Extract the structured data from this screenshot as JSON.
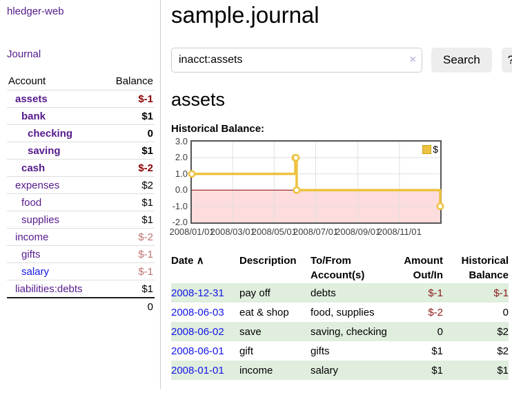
{
  "colors": {
    "link_purple": "#551a8b",
    "link_blue": "#1414e6",
    "negative_strong": "#8b0000",
    "negative_faded": "#bf7272",
    "row_stripe_green": "#dfeedd",
    "series_gold": "#edc240"
  },
  "sidebar": {
    "app_title": "hledger-web",
    "journal_link": "Journal",
    "accounts_header": {
      "account": "Account",
      "balance": "Balance"
    },
    "accounts": [
      {
        "name": "assets",
        "balance": "$-1",
        "indent": 1,
        "bold": true,
        "balance_style": "neg-strong",
        "name_color": "purple"
      },
      {
        "name": "bank",
        "balance": "$1",
        "indent": 2,
        "bold": true,
        "balance_style": "normal",
        "name_color": "purple"
      },
      {
        "name": "checking",
        "balance": "0",
        "indent": 3,
        "bold": true,
        "balance_style": "normal",
        "name_color": "purple"
      },
      {
        "name": "saving",
        "balance": "$1",
        "indent": 3,
        "bold": true,
        "balance_style": "normal",
        "name_color": "purple"
      },
      {
        "name": "cash",
        "balance": "$-2",
        "indent": 2,
        "bold": true,
        "balance_style": "neg-strong",
        "name_color": "purple"
      },
      {
        "name": "expenses",
        "balance": "$2",
        "indent": 1,
        "bold": false,
        "balance_style": "normal",
        "name_color": "purple"
      },
      {
        "name": "food",
        "balance": "$1",
        "indent": 2,
        "bold": false,
        "balance_style": "normal",
        "name_color": "purple"
      },
      {
        "name": "supplies",
        "balance": "$1",
        "indent": 2,
        "bold": false,
        "balance_style": "normal",
        "name_color": "purple"
      },
      {
        "name": "income",
        "balance": "$-2",
        "indent": 1,
        "bold": false,
        "balance_style": "neg-faded",
        "name_color": "purple"
      },
      {
        "name": "gifts",
        "balance": "$-1",
        "indent": 2,
        "bold": false,
        "balance_style": "neg-faded",
        "name_color": "purple"
      },
      {
        "name": "salary",
        "balance": "$-1",
        "indent": 2,
        "bold": false,
        "balance_style": "neg-faded",
        "name_color": "blue"
      },
      {
        "name": "liabilities:debts",
        "balance": "$1",
        "indent": 1,
        "bold": false,
        "balance_style": "normal",
        "name_color": "purple"
      }
    ],
    "total": "0"
  },
  "header": {
    "title": "sample.journal"
  },
  "search": {
    "query": "inacct:assets",
    "clear_icon": "×",
    "search_button": "Search",
    "help_button": "?"
  },
  "account_page": {
    "heading": "assets",
    "chart_label": "Historical Balance:"
  },
  "chart_data": {
    "type": "line",
    "title": "Historical Balance",
    "steps": true,
    "x_range": [
      "2008/01/01",
      "2008/12/31"
    ],
    "ylim": [
      -2,
      3
    ],
    "y_ticks": [
      3.0,
      2.0,
      1.0,
      0.0,
      -1.0,
      -2.0
    ],
    "x_ticks": [
      "2008/01/01",
      "2008/03/01",
      "2008/05/01",
      "2008/07/01",
      "2008/09/01",
      "2008/11/01"
    ],
    "grid": true,
    "legend_position": "top-right",
    "negative_region_color": "#fcdcdc",
    "zero_line_color": "#8b0000",
    "grid_color": "#e0e0e0",
    "series": [
      {
        "name": "$",
        "color": "#edc240",
        "points": [
          [
            "2008/01/01",
            1
          ],
          [
            "2008/06/01",
            2
          ],
          [
            "2008/06/02",
            2
          ],
          [
            "2008/06/03",
            0
          ],
          [
            "2008/12/31",
            -1
          ]
        ]
      }
    ]
  },
  "register": {
    "columns": [
      "Date",
      "Description",
      "To/From Account(s)",
      "Amount Out/In",
      "Historical Balance"
    ],
    "sort_icon": "∧",
    "rows": [
      {
        "date": "2008-12-31",
        "description": "pay off",
        "accounts": "debts",
        "amount": "$-1",
        "balance": "$-1",
        "amount_negative": true,
        "balance_negative": true
      },
      {
        "date": "2008-06-03",
        "description": "eat & shop",
        "accounts": "food, supplies",
        "amount": "$-2",
        "balance": "0",
        "amount_negative": true,
        "balance_negative": false
      },
      {
        "date": "2008-06-02",
        "description": "save",
        "accounts": "saving, checking",
        "amount": "0",
        "balance": "$2",
        "amount_negative": false,
        "balance_negative": false
      },
      {
        "date": "2008-06-01",
        "description": "gift",
        "accounts": "gifts",
        "amount": "$1",
        "balance": "$2",
        "amount_negative": false,
        "balance_negative": false
      },
      {
        "date": "2008-01-01",
        "description": "income",
        "accounts": "salary",
        "amount": "$1",
        "balance": "$1",
        "amount_negative": false,
        "balance_negative": false
      }
    ]
  }
}
